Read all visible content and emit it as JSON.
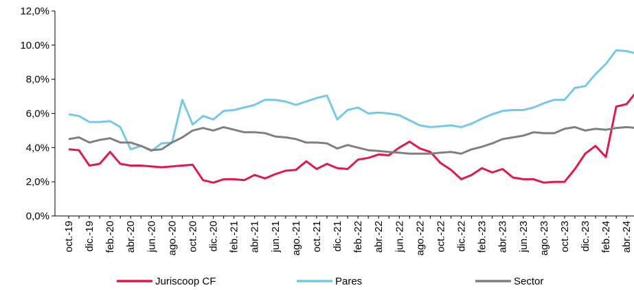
{
  "chart_data": {
    "type": "line",
    "categories": [
      "oct.-19",
      null,
      "dic.-19",
      null,
      "feb.-20",
      null,
      "abr.-20",
      null,
      "jun.-20",
      null,
      "ago.-20",
      null,
      "oct.-20",
      null,
      "dic.-20",
      null,
      "feb.-21",
      null,
      "abr.-21",
      null,
      "jun.-21",
      null,
      "ago.-21",
      null,
      "oct.-21",
      null,
      "dic.-21",
      null,
      "feb.-22",
      null,
      "abr.-22",
      null,
      "jun.-22",
      null,
      "ago.-22",
      null,
      "oct.-22",
      null,
      "dic.-22",
      null,
      "feb.-23",
      null,
      "abr.-23",
      null,
      "jun.-23",
      null,
      "ago.-23",
      null,
      "oct.-23",
      null,
      "dic.-23",
      null,
      "feb.-24",
      null,
      "abr.-24",
      null
    ],
    "series": [
      {
        "name": "Juriscoop CF",
        "color": "#e0194a",
        "values": [
          3.9,
          3.85,
          2.95,
          3.05,
          3.75,
          3.05,
          2.95,
          2.95,
          2.9,
          2.85,
          2.9,
          2.95,
          3.0,
          2.1,
          1.95,
          2.15,
          2.15,
          2.1,
          2.4,
          2.2,
          2.45,
          2.65,
          2.7,
          3.2,
          2.75,
          3.05,
          2.8,
          2.75,
          3.3,
          3.4,
          3.6,
          3.55,
          4.0,
          4.35,
          3.95,
          3.75,
          3.1,
          2.7,
          2.15,
          2.4,
          2.8,
          2.55,
          2.75,
          2.25,
          2.15,
          2.15,
          1.95,
          2.0,
          2.0,
          2.75,
          3.65,
          4.1,
          3.45,
          6.4,
          6.55,
          7.3
        ]
      },
      {
        "name": "Pares",
        "color": "#75c8ea",
        "values": [
          5.95,
          5.85,
          5.5,
          5.5,
          5.55,
          5.2,
          3.9,
          4.1,
          3.8,
          4.25,
          4.3,
          6.8,
          5.35,
          5.85,
          5.65,
          6.15,
          6.2,
          6.35,
          6.5,
          6.8,
          6.8,
          6.7,
          6.5,
          6.7,
          6.9,
          7.05,
          5.65,
          6.2,
          6.35,
          6.0,
          6.05,
          6.0,
          5.9,
          5.6,
          5.3,
          5.2,
          5.25,
          5.3,
          5.2,
          5.4,
          5.7,
          5.95,
          6.15,
          6.2,
          6.2,
          6.35,
          6.6,
          6.8,
          6.8,
          7.5,
          7.6,
          8.3,
          8.9,
          9.7,
          9.65,
          9.5
        ]
      },
      {
        "name": "Sector",
        "color": "#7f7f7f",
        "values": [
          4.5,
          4.6,
          4.3,
          4.45,
          4.55,
          4.3,
          4.3,
          4.1,
          3.85,
          3.9,
          4.3,
          4.6,
          5.0,
          5.15,
          5.0,
          5.2,
          5.05,
          4.9,
          4.9,
          4.85,
          4.65,
          4.6,
          4.5,
          4.3,
          4.3,
          4.25,
          3.95,
          4.15,
          4.0,
          3.85,
          3.8,
          3.75,
          3.7,
          3.65,
          3.65,
          3.65,
          3.7,
          3.75,
          3.65,
          3.9,
          4.05,
          4.25,
          4.5,
          4.6,
          4.7,
          4.9,
          4.85,
          4.85,
          5.1,
          5.2,
          5.0,
          5.1,
          5.05,
          5.15,
          5.2,
          5.15
        ]
      }
    ],
    "ylim": [
      0,
      12
    ],
    "yticks": [
      {
        "value": 0,
        "label": "0,0%"
      },
      {
        "value": 2,
        "label": "2,0%"
      },
      {
        "value": 4,
        "label": "4,0%"
      },
      {
        "value": 6,
        "label": "6,0%"
      },
      {
        "value": 8,
        "label": "8,0%"
      },
      {
        "value": 10,
        "label": "10.0%"
      },
      {
        "value": 12,
        "label": "12,0%"
      }
    ],
    "legend": "bottom"
  }
}
